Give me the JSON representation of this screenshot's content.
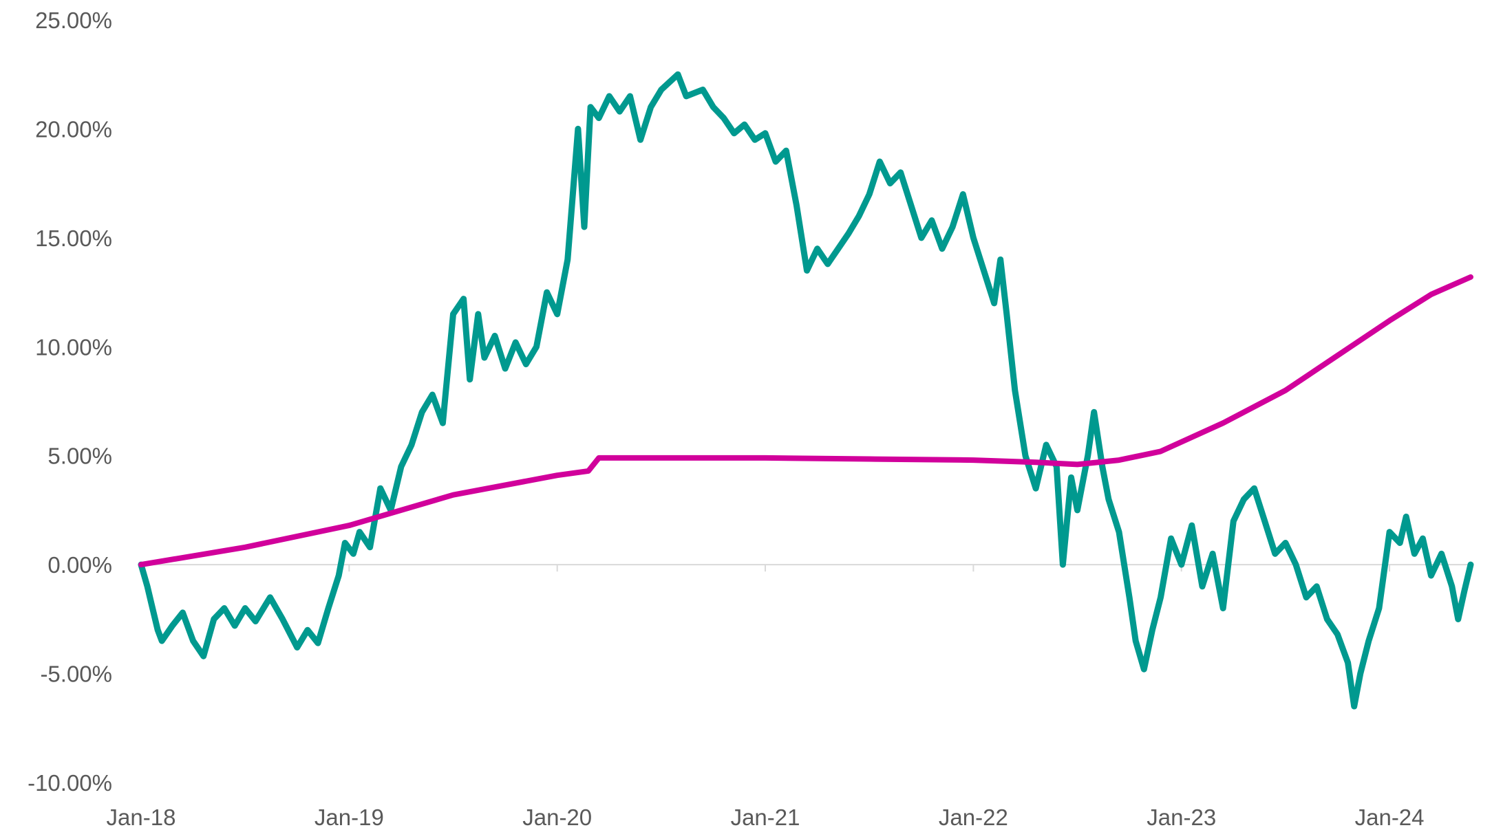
{
  "chart_data": {
    "type": "line",
    "title": "",
    "xlabel": "",
    "ylabel": "",
    "ylim": [
      -10,
      25
    ],
    "xlim": [
      2018.0,
      2024.4
    ],
    "grid": false,
    "legend": "none",
    "y_ticks": [
      {
        "value": 25,
        "label": "25.00%"
      },
      {
        "value": 20,
        "label": "20.00%"
      },
      {
        "value": 15,
        "label": "15.00%"
      },
      {
        "value": 10,
        "label": "10.00%"
      },
      {
        "value": 5,
        "label": "5.00%"
      },
      {
        "value": 0,
        "label": "0.00%"
      },
      {
        "value": -5,
        "label": "-5.00%"
      },
      {
        "value": -10,
        "label": "-10.00%"
      }
    ],
    "x_ticks": [
      {
        "value": 2018,
        "label": "Jan-18"
      },
      {
        "value": 2019,
        "label": "Jan-19"
      },
      {
        "value": 2020,
        "label": "Jan-20"
      },
      {
        "value": 2021,
        "label": "Jan-21"
      },
      {
        "value": 2022,
        "label": "Jan-22"
      },
      {
        "value": 2023,
        "label": "Jan-23"
      },
      {
        "value": 2024,
        "label": "Jan-24"
      }
    ],
    "series": [
      {
        "color": "#00998f",
        "points": [
          [
            2018.0,
            0.0
          ],
          [
            2018.03,
            -1.0
          ],
          [
            2018.05,
            -1.8
          ],
          [
            2018.08,
            -3.0
          ],
          [
            2018.1,
            -3.5
          ],
          [
            2018.15,
            -2.8
          ],
          [
            2018.2,
            -2.2
          ],
          [
            2018.25,
            -3.5
          ],
          [
            2018.3,
            -4.2
          ],
          [
            2018.35,
            -2.5
          ],
          [
            2018.4,
            -2.0
          ],
          [
            2018.45,
            -2.8
          ],
          [
            2018.5,
            -2.0
          ],
          [
            2018.55,
            -2.6
          ],
          [
            2018.62,
            -1.5
          ],
          [
            2018.68,
            -2.5
          ],
          [
            2018.75,
            -3.8
          ],
          [
            2018.8,
            -3.0
          ],
          [
            2018.85,
            -3.6
          ],
          [
            2018.9,
            -2.0
          ],
          [
            2018.95,
            -0.5
          ],
          [
            2018.98,
            1.0
          ],
          [
            2019.02,
            0.5
          ],
          [
            2019.05,
            1.5
          ],
          [
            2019.1,
            0.8
          ],
          [
            2019.15,
            3.5
          ],
          [
            2019.2,
            2.5
          ],
          [
            2019.25,
            4.5
          ],
          [
            2019.3,
            5.5
          ],
          [
            2019.35,
            7.0
          ],
          [
            2019.4,
            7.8
          ],
          [
            2019.45,
            6.5
          ],
          [
            2019.5,
            11.5
          ],
          [
            2019.55,
            12.2
          ],
          [
            2019.58,
            8.5
          ],
          [
            2019.62,
            11.5
          ],
          [
            2019.65,
            9.5
          ],
          [
            2019.7,
            10.5
          ],
          [
            2019.75,
            9.0
          ],
          [
            2019.8,
            10.2
          ],
          [
            2019.85,
            9.2
          ],
          [
            2019.9,
            10.0
          ],
          [
            2019.95,
            12.5
          ],
          [
            2020.0,
            11.5
          ],
          [
            2020.05,
            14.0
          ],
          [
            2020.1,
            20.0
          ],
          [
            2020.13,
            15.5
          ],
          [
            2020.16,
            21.0
          ],
          [
            2020.2,
            20.5
          ],
          [
            2020.25,
            21.5
          ],
          [
            2020.3,
            20.8
          ],
          [
            2020.35,
            21.5
          ],
          [
            2020.4,
            19.5
          ],
          [
            2020.45,
            21.0
          ],
          [
            2020.5,
            21.8
          ],
          [
            2020.58,
            22.5
          ],
          [
            2020.62,
            21.5
          ],
          [
            2020.7,
            21.8
          ],
          [
            2020.75,
            21.0
          ],
          [
            2020.8,
            20.5
          ],
          [
            2020.85,
            19.8
          ],
          [
            2020.9,
            20.2
          ],
          [
            2020.95,
            19.5
          ],
          [
            2021.0,
            19.8
          ],
          [
            2021.05,
            18.5
          ],
          [
            2021.1,
            19.0
          ],
          [
            2021.15,
            16.5
          ],
          [
            2021.2,
            13.5
          ],
          [
            2021.25,
            14.5
          ],
          [
            2021.3,
            13.8
          ],
          [
            2021.35,
            14.5
          ],
          [
            2021.4,
            15.2
          ],
          [
            2021.45,
            16.0
          ],
          [
            2021.5,
            17.0
          ],
          [
            2021.55,
            18.5
          ],
          [
            2021.6,
            17.5
          ],
          [
            2021.65,
            18.0
          ],
          [
            2021.7,
            16.5
          ],
          [
            2021.75,
            15.0
          ],
          [
            2021.8,
            15.8
          ],
          [
            2021.85,
            14.5
          ],
          [
            2021.9,
            15.5
          ],
          [
            2021.95,
            17.0
          ],
          [
            2022.0,
            15.0
          ],
          [
            2022.05,
            13.5
          ],
          [
            2022.1,
            12.0
          ],
          [
            2022.13,
            14.0
          ],
          [
            2022.16,
            11.5
          ],
          [
            2022.2,
            8.0
          ],
          [
            2022.25,
            5.0
          ],
          [
            2022.3,
            3.5
          ],
          [
            2022.35,
            5.5
          ],
          [
            2022.4,
            4.5
          ],
          [
            2022.43,
            0.0
          ],
          [
            2022.47,
            4.0
          ],
          [
            2022.5,
            2.5
          ],
          [
            2022.55,
            5.0
          ],
          [
            2022.58,
            7.0
          ],
          [
            2022.62,
            4.5
          ],
          [
            2022.65,
            3.0
          ],
          [
            2022.7,
            1.5
          ],
          [
            2022.75,
            -1.5
          ],
          [
            2022.78,
            -3.5
          ],
          [
            2022.82,
            -4.8
          ],
          [
            2022.86,
            -3.0
          ],
          [
            2022.9,
            -1.5
          ],
          [
            2022.95,
            1.2
          ],
          [
            2023.0,
            0.0
          ],
          [
            2023.05,
            1.8
          ],
          [
            2023.1,
            -1.0
          ],
          [
            2023.15,
            0.5
          ],
          [
            2023.2,
            -2.0
          ],
          [
            2023.25,
            2.0
          ],
          [
            2023.3,
            3.0
          ],
          [
            2023.35,
            3.5
          ],
          [
            2023.4,
            2.0
          ],
          [
            2023.45,
            0.5
          ],
          [
            2023.5,
            1.0
          ],
          [
            2023.55,
            0.0
          ],
          [
            2023.6,
            -1.5
          ],
          [
            2023.65,
            -1.0
          ],
          [
            2023.7,
            -2.5
          ],
          [
            2023.75,
            -3.2
          ],
          [
            2023.8,
            -4.5
          ],
          [
            2023.83,
            -6.5
          ],
          [
            2023.86,
            -5.0
          ],
          [
            2023.9,
            -3.5
          ],
          [
            2023.95,
            -2.0
          ],
          [
            2024.0,
            1.5
          ],
          [
            2024.05,
            1.0
          ],
          [
            2024.08,
            2.2
          ],
          [
            2024.12,
            0.5
          ],
          [
            2024.16,
            1.2
          ],
          [
            2024.2,
            -0.5
          ],
          [
            2024.25,
            0.5
          ],
          [
            2024.3,
            -1.0
          ],
          [
            2024.33,
            -2.5
          ],
          [
            2024.36,
            -1.2
          ],
          [
            2024.39,
            0.0
          ]
        ]
      },
      {
        "color": "#d1009b",
        "points": [
          [
            2018.0,
            0.0
          ],
          [
            2018.5,
            0.8
          ],
          [
            2019.0,
            1.8
          ],
          [
            2019.5,
            3.2
          ],
          [
            2020.0,
            4.1
          ],
          [
            2020.15,
            4.3
          ],
          [
            2020.2,
            4.9
          ],
          [
            2020.5,
            4.9
          ],
          [
            2021.0,
            4.9
          ],
          [
            2021.5,
            4.85
          ],
          [
            2022.0,
            4.8
          ],
          [
            2022.3,
            4.7
          ],
          [
            2022.5,
            4.6
          ],
          [
            2022.7,
            4.8
          ],
          [
            2022.9,
            5.2
          ],
          [
            2023.2,
            6.5
          ],
          [
            2023.5,
            8.0
          ],
          [
            2023.75,
            9.6
          ],
          [
            2024.0,
            11.2
          ],
          [
            2024.2,
            12.4
          ],
          [
            2024.39,
            13.2
          ]
        ]
      }
    ]
  }
}
